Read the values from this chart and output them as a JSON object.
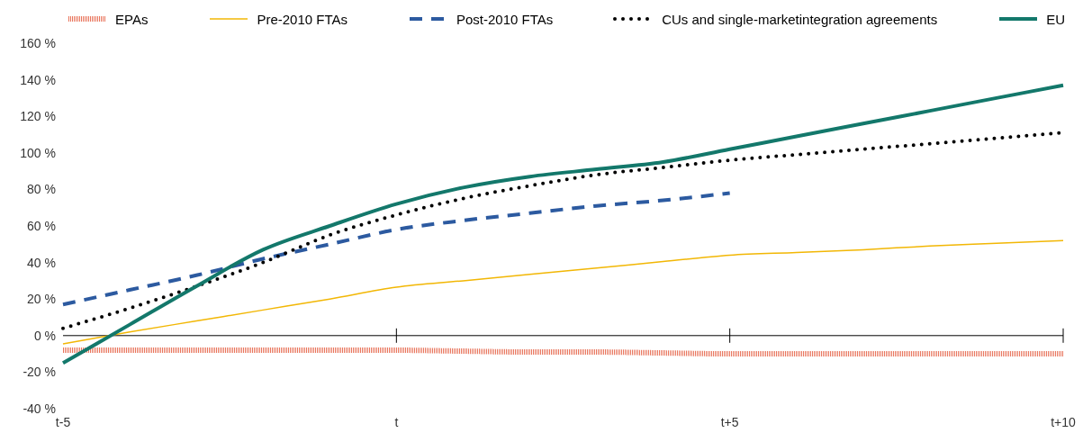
{
  "chart_data": {
    "type": "line",
    "categories": [
      "t-5",
      null,
      null,
      null,
      null,
      "t",
      null,
      null,
      null,
      null,
      "t+5",
      null,
      null,
      null,
      null,
      "t+10"
    ],
    "ylim": [
      -40,
      160
    ],
    "yticks": [
      {
        "value": -40,
        "label": "-40 %"
      },
      {
        "value": -20,
        "label": "-20 %"
      },
      {
        "value": 0,
        "label": "0 %"
      },
      {
        "value": 20,
        "label": "20 %"
      },
      {
        "value": 40,
        "label": "40 %"
      },
      {
        "value": 60,
        "label": "60 %"
      },
      {
        "value": 80,
        "label": "80 %"
      },
      {
        "value": 100,
        "label": "100 %"
      },
      {
        "value": 120,
        "label": "120 %"
      },
      {
        "value": 140,
        "label": "140 %"
      },
      {
        "value": 160,
        "label": "160 %"
      }
    ],
    "grid": false,
    "legend": "top",
    "marker": "none",
    "ref_lines": [
      {
        "axis": "y",
        "value": 0,
        "color": "#000000"
      }
    ],
    "series": [
      {
        "name": "EPAs",
        "color": "#e8735a",
        "line_style": "dotted",
        "values": [
          -8,
          -8,
          -8,
          -8,
          -8,
          -8,
          -8.5,
          -9,
          -9,
          -9.5,
          -10,
          -10,
          -10,
          -10,
          -10,
          -10
        ]
      },
      {
        "name": "Pre-2010 FTAs",
        "color": "#f2b705",
        "line_style": "solid",
        "values": [
          -4.5,
          2,
          8,
          14,
          20,
          26.5,
          30,
          33.5,
          37,
          40.5,
          44,
          45.5,
          47,
          49,
          50.5,
          52
        ]
      },
      {
        "name": "Post-2010 FTAs",
        "color": "#2c5aa0",
        "line_style": "dashed",
        "values": [
          17,
          25,
          33,
          42,
          50,
          58,
          63,
          67,
          71,
          74,
          78,
          null,
          null,
          null,
          null,
          null
        ]
      },
      {
        "name": "CUs and single-marketintegration agreements",
        "color": "#000000",
        "line_style": "dotted",
        "values": [
          4,
          15,
          27,
          40,
          55,
          66,
          75,
          82,
          88,
          92,
          96,
          99,
          102,
          105,
          108,
          111
        ]
      },
      {
        "name": "EU",
        "color": "#13786b",
        "line_style": "solid",
        "values": [
          -15,
          6,
          27,
          47,
          60,
          72,
          81,
          87,
          91,
          95,
          102,
          109,
          116,
          123,
          130,
          137
        ]
      }
    ]
  }
}
